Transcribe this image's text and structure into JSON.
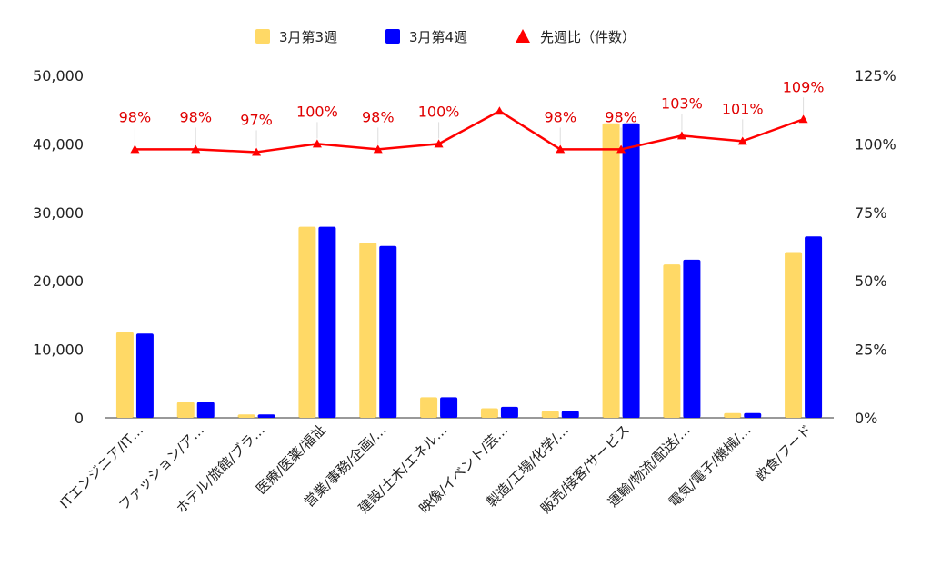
{
  "chart_data": {
    "type": "bar",
    "categories": [
      "ITエンジニア/IT…",
      "ファッション/ア…",
      "ホテル/旅館/ブラ…",
      "医療/医薬/福祉",
      "営業/事務/企画/…",
      "建設/土木/エネル…",
      "映像/イベント/芸…",
      "製造/工場/化学/…",
      "販売/接客/サービス",
      "運輸/物流/配送/…",
      "電気/電子/機械/…",
      "飲食/フード"
    ],
    "series": [
      {
        "name": "3月第3週",
        "type": "bar",
        "axis": "left",
        "color": "#ffd966",
        "values": [
          12500,
          2300,
          500,
          27900,
          25600,
          3000,
          1400,
          1000,
          43000,
          22400,
          700,
          24200
        ]
      },
      {
        "name": "3月第4週",
        "type": "bar",
        "axis": "left",
        "color": "#0000ff",
        "values": [
          12300,
          2300,
          500,
          27900,
          25100,
          3000,
          1600,
          1000,
          43000,
          23100,
          700,
          26500
        ]
      },
      {
        "name": "先週比（件数）",
        "type": "line",
        "axis": "right",
        "color": "#ff0000",
        "values": [
          98,
          98,
          97,
          100,
          98,
          100,
          112,
          98,
          98,
          103,
          101,
          109
        ],
        "labels": [
          "98%",
          "98%",
          "97%",
          "100%",
          "98%",
          "100%",
          "",
          "98%",
          "98%",
          "103%",
          "101%",
          "109%"
        ]
      }
    ],
    "y_left": {
      "ticks": [
        "0",
        "10,000",
        "20,000",
        "30,000",
        "40,000",
        "50,000"
      ],
      "min": 0,
      "max": 50000
    },
    "y_right": {
      "ticks": [
        "0%",
        "25%",
        "50%",
        "75%",
        "100%",
        "125%"
      ],
      "min": 0,
      "max": 125
    },
    "legend": "top",
    "grid": false
  }
}
